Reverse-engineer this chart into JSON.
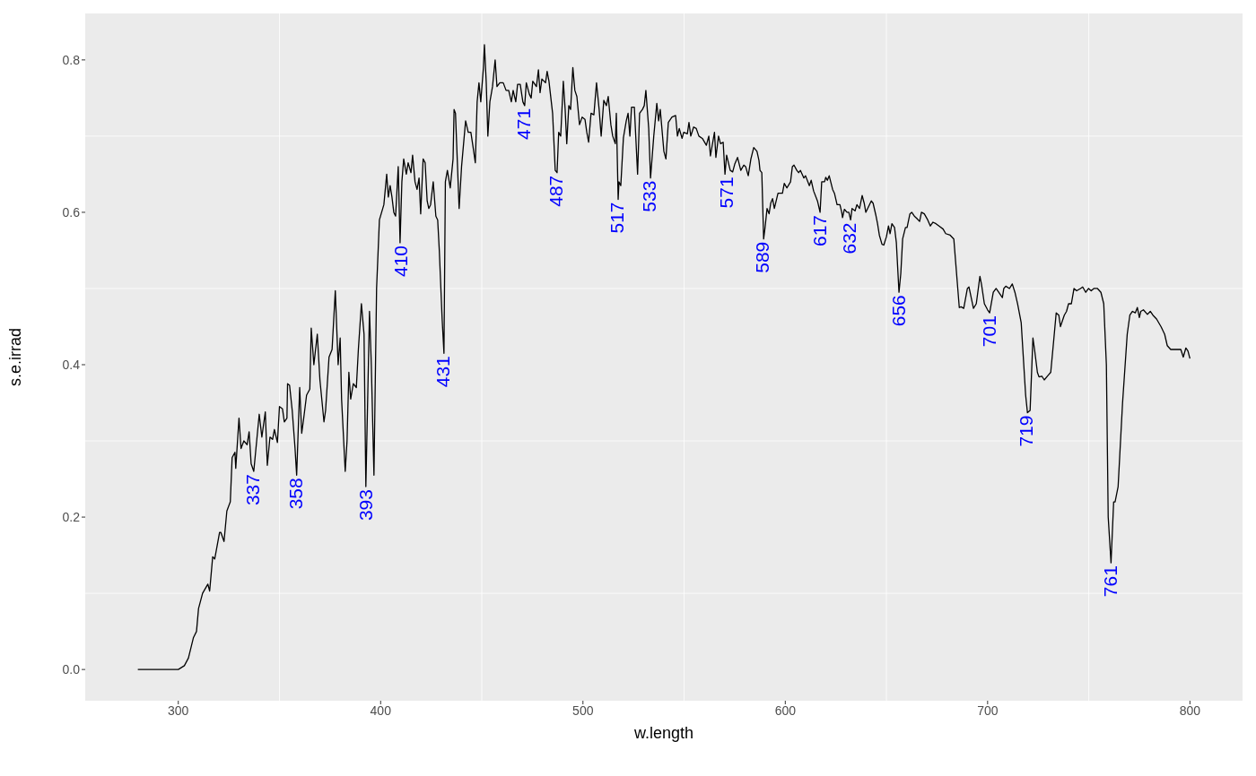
{
  "chart_data": {
    "type": "line",
    "xlabel": "w.length",
    "ylabel": "s.e.irrad",
    "xlim": [
      254,
      826
    ],
    "xticks": [
      300,
      400,
      500,
      600,
      700,
      800
    ],
    "ylim": [
      -0.041,
      0.861
    ],
    "yticks": [
      {
        "value": 0,
        "label": "0.0"
      },
      {
        "value": 0.2,
        "label": "0.2"
      },
      {
        "value": 0.4,
        "label": "0.4"
      },
      {
        "value": 0.6,
        "label": "0.6"
      },
      {
        "value": 0.8,
        "label": "0.8"
      }
    ],
    "grid": true,
    "marker": "none",
    "line_style": "solid",
    "series": [
      {
        "color": "#000000",
        "x": [
          280,
          300,
          303,
          305,
          307.5,
          309,
          310,
          312,
          314.6,
          315.5,
          317,
          318,
          320.4,
          321,
          322.6,
          324,
          325.7,
          326.6,
          328,
          328.4,
          330,
          331,
          332.4,
          334,
          335,
          336,
          337.3,
          340,
          341.3,
          343,
          344,
          345.3,
          346.6,
          347.5,
          349,
          350,
          351.5,
          352.4,
          353.7,
          354,
          355,
          356.3,
          357.7,
          358.5,
          360,
          361,
          362,
          363.4,
          365,
          365.7,
          367,
          368.7,
          370,
          372,
          372.8,
          374.5,
          376,
          377.6,
          379,
          380,
          380.7,
          382.5,
          383.4,
          384.3,
          385.2,
          386.5,
          388,
          389,
          390.5,
          391.8,
          392.7,
          394.5,
          395.4,
          396.7,
          398,
          399.4,
          401.6,
          403,
          403.8,
          404.7,
          405.6,
          406.5,
          407.4,
          408.7,
          409.6,
          410.5,
          411.4,
          412.7,
          413.6,
          415,
          415.8,
          417,
          418,
          419,
          419.8,
          421,
          422,
          423,
          423.8,
          424.7,
          426,
          427.3,
          428.2,
          429,
          430.4,
          431.3,
          432,
          433,
          434.4,
          435.8,
          436.3,
          437,
          438.8,
          440,
          442,
          443.3,
          444.6,
          446,
          446.8,
          447.7,
          448.6,
          449.5,
          450.8,
          451.3,
          452.2,
          453,
          454,
          455.3,
          456.6,
          457.5,
          458.9,
          460.6,
          462,
          463.3,
          464.6,
          465.5,
          466.8,
          467.7,
          469,
          470.3,
          471.2,
          472,
          473.5,
          474.4,
          475.2,
          477,
          478,
          478.8,
          479.7,
          481.5,
          482.3,
          483.2,
          485,
          486.3,
          487.2,
          488,
          489,
          490.3,
          491.2,
          492,
          493,
          493.9,
          495,
          496,
          497,
          498.3,
          499.6,
          501,
          501.9,
          502.8,
          504,
          505.4,
          506.7,
          508,
          509,
          510.3,
          511.6,
          512.5,
          513.8,
          514.7,
          516,
          516.5,
          517.4,
          517.8,
          518.7,
          520,
          521.4,
          522.3,
          523.2,
          524,
          525.4,
          527,
          528,
          529.4,
          530.3,
          531.1,
          532.5,
          533.4,
          535,
          536.5,
          537.4,
          538.2,
          540,
          541,
          542.2,
          544,
          545.8,
          546.7,
          547.6,
          549,
          549.8,
          551.6,
          552.4,
          553.3,
          554.7,
          556,
          557.3,
          559,
          561,
          562.2,
          563,
          565,
          565.7,
          567,
          568,
          569.3,
          570.2,
          571,
          572.8,
          574,
          575,
          576.4,
          578,
          579.5,
          580.4,
          581.7,
          583,
          584.4,
          586,
          587,
          587.5,
          588.4,
          589.3,
          590,
          591,
          592,
          592.8,
          593.7,
          594.6,
          596.4,
          597.2,
          598.6,
          599.5,
          600.8,
          602.6,
          603.5,
          604.3,
          605.7,
          606.6,
          607.5,
          609.2,
          610,
          611.9,
          612.8,
          614,
          615.9,
          617.2,
          618,
          619.4,
          620,
          620.8,
          621.7,
          623.4,
          624.3,
          625.6,
          627,
          627.9,
          628.3,
          629.2,
          630.5,
          631.4,
          632.3,
          633,
          634.5,
          635.4,
          636.7,
          638,
          639,
          639.8,
          640.7,
          642.5,
          643.4,
          644.7,
          645.6,
          646.5,
          647.8,
          648.7,
          650,
          651,
          651.8,
          652.7,
          654,
          654.9,
          656.2,
          657.1,
          658,
          659.4,
          660.2,
          661.6,
          662.5,
          663.8,
          665,
          666.4,
          667.3,
          668.7,
          670.4,
          671.7,
          673,
          674.5,
          676,
          678,
          679.3,
          681.5,
          683.3,
          684.2,
          686,
          686.9,
          688.2,
          690,
          690.8,
          693,
          694.4,
          696.2,
          697,
          698.4,
          700,
          701,
          702.8,
          704.2,
          705.5,
          707.3,
          708,
          709,
          710.8,
          712.2,
          713.5,
          714.8,
          716.6,
          718.8,
          719.7,
          721,
          722.4,
          723.2,
          724.6,
          725.4,
          726.8,
          728,
          729.9,
          731.2,
          732.6,
          733.9,
          735.2,
          736,
          737.9,
          739,
          740,
          741.4,
          742.7,
          744,
          745.9,
          747,
          748.5,
          749.9,
          751.2,
          752.5,
          754.3,
          756,
          757.4,
          758.7,
          759.6,
          761,
          762.3,
          763,
          764.5,
          766.7,
          769,
          770.3,
          771.6,
          773,
          774,
          775,
          775.7,
          777,
          779,
          780.4,
          781.7,
          783.5,
          785.7,
          787.5,
          788.8,
          790.5,
          793.7,
          795.5,
          796.7,
          798,
          799,
          800
        ],
        "values": [
          0,
          0,
          0.005,
          0.015,
          0.042,
          0.05,
          0.08,
          0.1,
          0.112,
          0.103,
          0.148,
          0.145,
          0.18,
          0.18,
          0.168,
          0.208,
          0.22,
          0.278,
          0.285,
          0.264,
          0.33,
          0.29,
          0.3,
          0.295,
          0.312,
          0.27,
          0.26,
          0.335,
          0.305,
          0.338,
          0.268,
          0.305,
          0.302,
          0.315,
          0.298,
          0.345,
          0.342,
          0.325,
          0.33,
          0.375,
          0.373,
          0.34,
          0.29,
          0.255,
          0.37,
          0.31,
          0.33,
          0.36,
          0.368,
          0.448,
          0.4,
          0.44,
          0.38,
          0.325,
          0.34,
          0.41,
          0.42,
          0.497,
          0.4,
          0.435,
          0.355,
          0.26,
          0.3,
          0.39,
          0.355,
          0.375,
          0.37,
          0.42,
          0.48,
          0.44,
          0.24,
          0.47,
          0.4,
          0.255,
          0.5,
          0.59,
          0.61,
          0.65,
          0.62,
          0.635,
          0.62,
          0.6,
          0.595,
          0.66,
          0.56,
          0.64,
          0.67,
          0.65,
          0.665,
          0.652,
          0.675,
          0.64,
          0.63,
          0.645,
          0.598,
          0.67,
          0.665,
          0.615,
          0.605,
          0.61,
          0.64,
          0.595,
          0.59,
          0.55,
          0.46,
          0.415,
          0.64,
          0.655,
          0.632,
          0.67,
          0.735,
          0.73,
          0.605,
          0.66,
          0.72,
          0.705,
          0.705,
          0.68,
          0.665,
          0.745,
          0.77,
          0.745,
          0.79,
          0.82,
          0.77,
          0.7,
          0.745,
          0.765,
          0.8,
          0.765,
          0.77,
          0.77,
          0.76,
          0.76,
          0.745,
          0.76,
          0.745,
          0.768,
          0.768,
          0.745,
          0.74,
          0.77,
          0.755,
          0.75,
          0.772,
          0.765,
          0.787,
          0.757,
          0.775,
          0.77,
          0.785,
          0.772,
          0.73,
          0.655,
          0.652,
          0.705,
          0.7,
          0.772,
          0.735,
          0.69,
          0.74,
          0.735,
          0.79,
          0.76,
          0.752,
          0.715,
          0.725,
          0.722,
          0.705,
          0.692,
          0.73,
          0.728,
          0.77,
          0.735,
          0.7,
          0.747,
          0.74,
          0.752,
          0.715,
          0.7,
          0.69,
          0.73,
          0.617,
          0.64,
          0.635,
          0.698,
          0.72,
          0.73,
          0.7,
          0.738,
          0.738,
          0.65,
          0.73,
          0.735,
          0.74,
          0.76,
          0.71,
          0.645,
          0.7,
          0.743,
          0.72,
          0.735,
          0.68,
          0.67,
          0.718,
          0.725,
          0.727,
          0.7,
          0.71,
          0.697,
          0.705,
          0.703,
          0.718,
          0.7,
          0.712,
          0.71,
          0.7,
          0.697,
          0.688,
          0.7,
          0.674,
          0.705,
          0.672,
          0.7,
          0.69,
          0.692,
          0.65,
          0.675,
          0.655,
          0.653,
          0.663,
          0.672,
          0.655,
          0.662,
          0.66,
          0.648,
          0.67,
          0.685,
          0.68,
          0.668,
          0.655,
          0.652,
          0.565,
          0.58,
          0.605,
          0.598,
          0.612,
          0.618,
          0.605,
          0.625,
          0.625,
          0.625,
          0.638,
          0.632,
          0.64,
          0.66,
          0.662,
          0.655,
          0.652,
          0.655,
          0.645,
          0.648,
          0.635,
          0.642,
          0.628,
          0.615,
          0.6,
          0.64,
          0.64,
          0.646,
          0.642,
          0.648,
          0.63,
          0.625,
          0.61,
          0.61,
          0.6,
          0.593,
          0.604,
          0.6,
          0.6,
          0.59,
          0.605,
          0.602,
          0.61,
          0.605,
          0.622,
          0.612,
          0.6,
          0.605,
          0.615,
          0.612,
          0.597,
          0.585,
          0.57,
          0.558,
          0.557,
          0.568,
          0.582,
          0.572,
          0.585,
          0.58,
          0.56,
          0.495,
          0.52,
          0.565,
          0.58,
          0.58,
          0.598,
          0.6,
          0.595,
          0.592,
          0.588,
          0.6,
          0.598,
          0.59,
          0.582,
          0.587,
          0.585,
          0.582,
          0.578,
          0.572,
          0.57,
          0.565,
          0.535,
          0.475,
          0.476,
          0.474,
          0.5,
          0.502,
          0.474,
          0.48,
          0.516,
          0.505,
          0.48,
          0.472,
          0.468,
          0.495,
          0.5,
          0.495,
          0.488,
          0.5,
          0.503,
          0.5,
          0.506,
          0.495,
          0.48,
          0.455,
          0.36,
          0.337,
          0.34,
          0.435,
          0.42,
          0.39,
          0.384,
          0.385,
          0.38,
          0.386,
          0.39,
          0.43,
          0.468,
          0.465,
          0.45,
          0.465,
          0.47,
          0.48,
          0.48,
          0.5,
          0.497,
          0.5,
          0.502,
          0.495,
          0.5,
          0.497,
          0.5,
          0.5,
          0.495,
          0.48,
          0.4,
          0.2,
          0.14,
          0.22,
          0.22,
          0.24,
          0.35,
          0.44,
          0.465,
          0.47,
          0.468,
          0.475,
          0.462,
          0.47,
          0.472,
          0.466,
          0.47,
          0.465,
          0.46,
          0.45,
          0.44,
          0.425,
          0.42,
          0.42,
          0.42,
          0.41,
          0.422,
          0.418,
          0.408
        ]
      }
    ],
    "annotations": [
      {
        "text": "337",
        "x": 337,
        "y": 0.26
      },
      {
        "text": "358",
        "x": 358,
        "y": 0.255
      },
      {
        "text": "393",
        "x": 393,
        "y": 0.24
      },
      {
        "text": "410",
        "x": 410,
        "y": 0.56
      },
      {
        "text": "431",
        "x": 431,
        "y": 0.415
      },
      {
        "text": "471",
        "x": 471,
        "y": 0.74
      },
      {
        "text": "487",
        "x": 487,
        "y": 0.652
      },
      {
        "text": "517",
        "x": 517,
        "y": 0.617
      },
      {
        "text": "533",
        "x": 533,
        "y": 0.645
      },
      {
        "text": "571",
        "x": 571,
        "y": 0.65
      },
      {
        "text": "589",
        "x": 589,
        "y": 0.565
      },
      {
        "text": "617",
        "x": 617,
        "y": 0.6
      },
      {
        "text": "632",
        "x": 632,
        "y": 0.59
      },
      {
        "text": "656",
        "x": 656,
        "y": 0.495
      },
      {
        "text": "701",
        "x": 701,
        "y": 0.468
      },
      {
        "text": "719",
        "x": 719,
        "y": 0.337
      },
      {
        "text": "761",
        "x": 761,
        "y": 0.14
      }
    ]
  }
}
